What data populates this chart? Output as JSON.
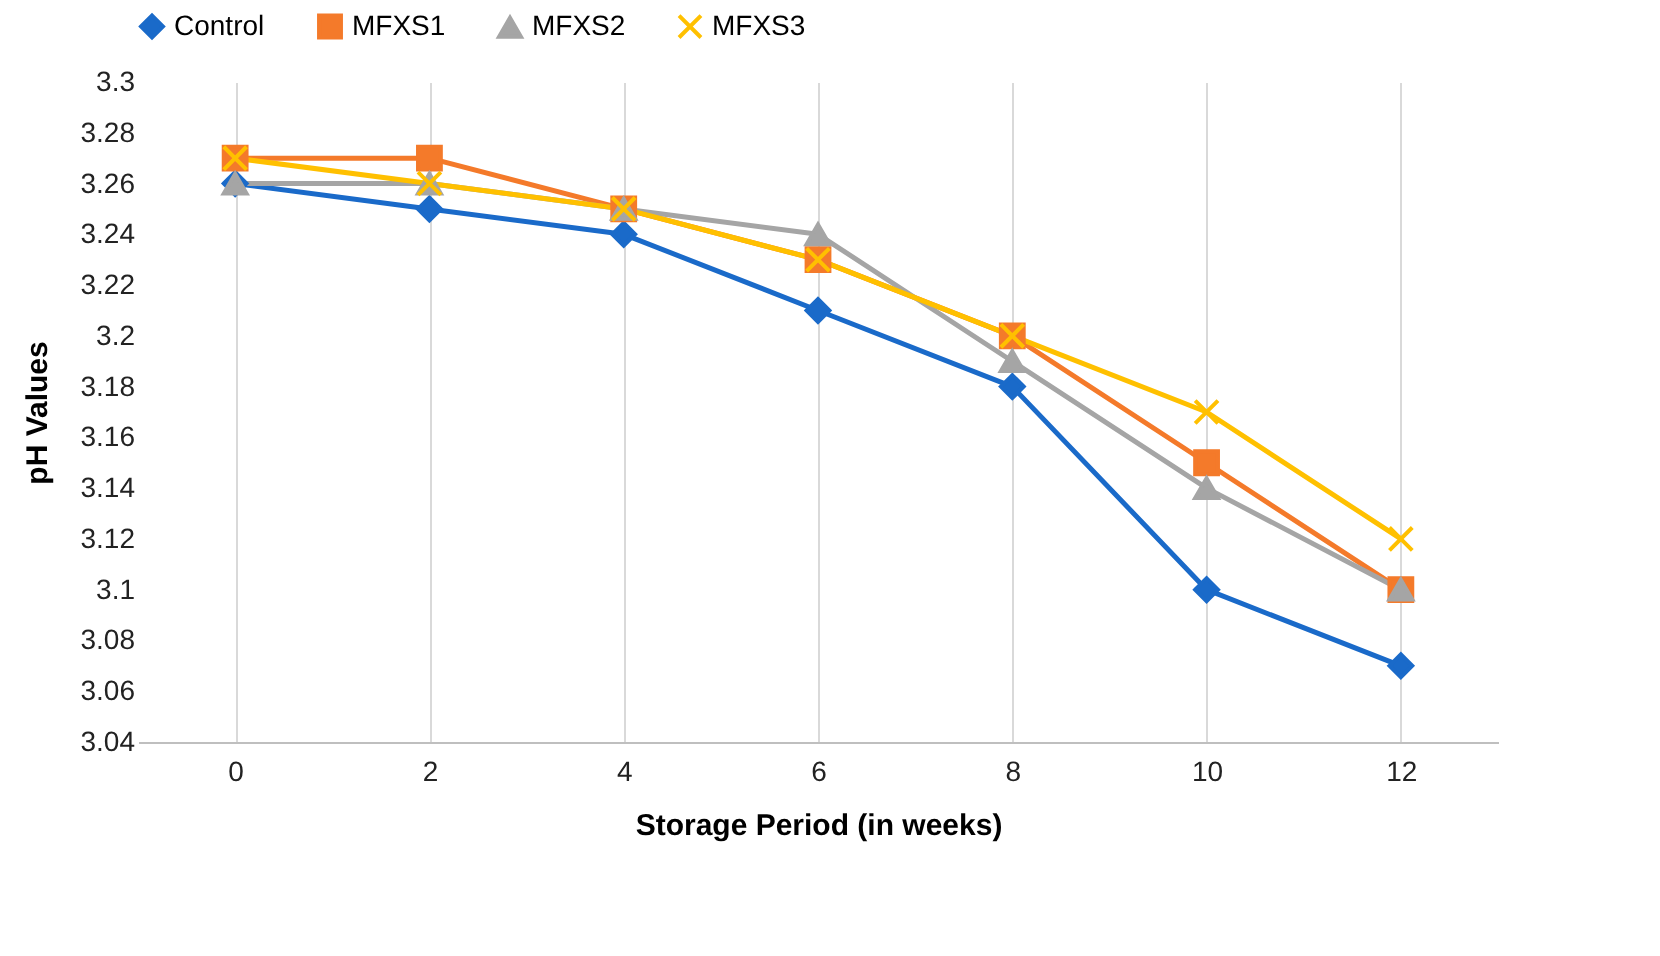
{
  "chart_data": {
    "type": "line",
    "xlabel": "Storage Period (in weeks)",
    "ylabel": "pH Values",
    "categories": [
      "0",
      "2",
      "4",
      "6",
      "8",
      "10",
      "12"
    ],
    "series": [
      {
        "name": "Control",
        "color": "#1a6ac9",
        "marker": "diamond",
        "values": [
          3.26,
          3.25,
          3.24,
          3.21,
          3.18,
          3.1,
          3.07
        ]
      },
      {
        "name": "MFXS1",
        "color": "#f47a2a",
        "marker": "square",
        "values": [
          3.27,
          3.27,
          3.25,
          3.23,
          3.2,
          3.15,
          3.1
        ]
      },
      {
        "name": "MFXS2",
        "color": "#a5a5a5",
        "marker": "triangle",
        "values": [
          3.26,
          3.26,
          3.25,
          3.24,
          3.19,
          3.14,
          3.1
        ]
      },
      {
        "name": "MFXS3",
        "color": "#ffc000",
        "marker": "cross",
        "values": [
          3.27,
          3.26,
          3.25,
          3.23,
          3.2,
          3.17,
          3.12
        ]
      }
    ],
    "ylim": [
      3.04,
      3.3
    ],
    "yticks": [
      3.04,
      3.06,
      3.08,
      3.1,
      3.12,
      3.14,
      3.16,
      3.18,
      3.2,
      3.22,
      3.24,
      3.26,
      3.28,
      3.3
    ],
    "grid": "x",
    "legend": "top",
    "line_style": "solid"
  }
}
